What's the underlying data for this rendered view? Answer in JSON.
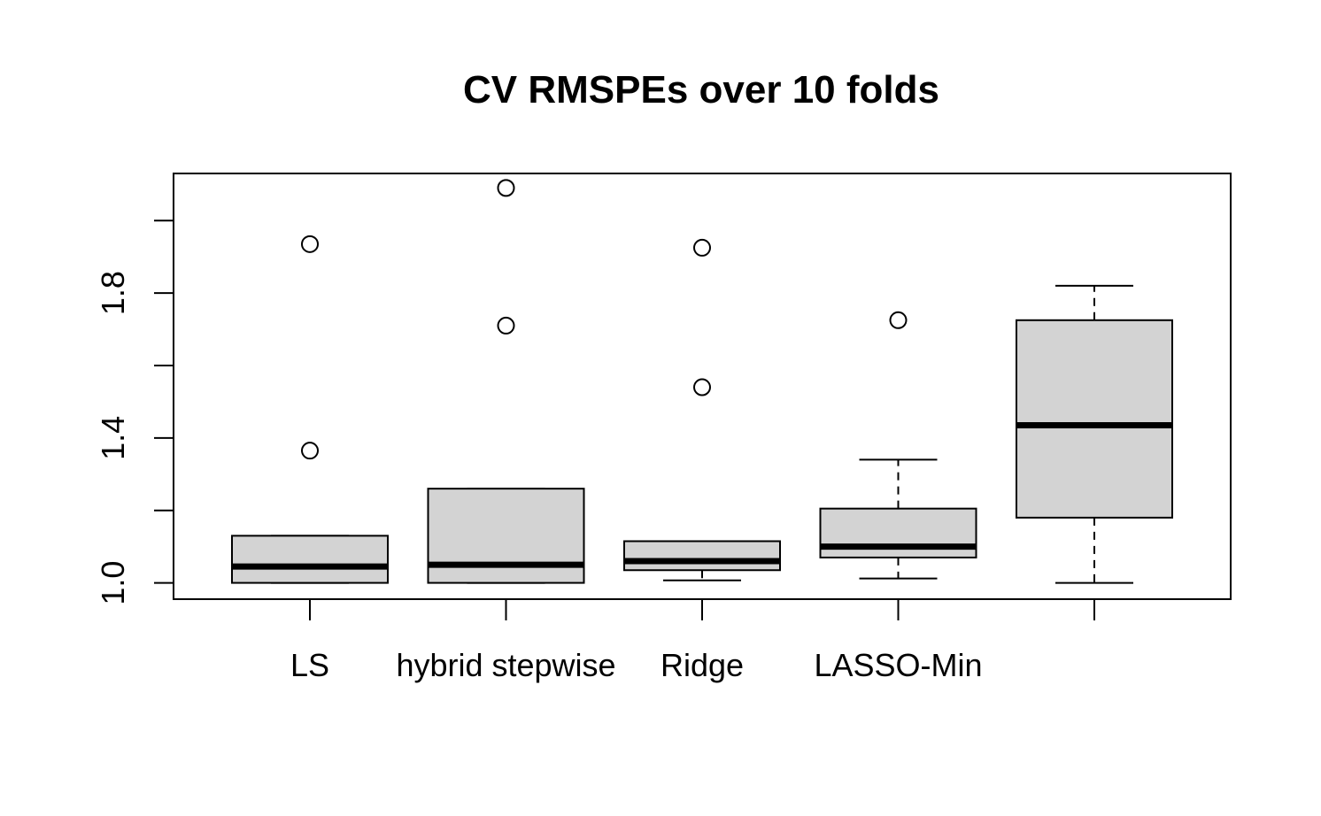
{
  "chart_data": {
    "type": "boxplot",
    "title": "CV RMSPEs over 10 folds",
    "xlabel": "",
    "ylabel": "",
    "ylim": [
      0.955,
      2.13
    ],
    "yticks": [
      1.0,
      1.2,
      1.4,
      1.6,
      1.8,
      2.0
    ],
    "ytick_labels": [
      "1.0",
      "",
      "1.4",
      "",
      "1.8",
      ""
    ],
    "categories": [
      "LS",
      "hybrid stepwise",
      "Ridge",
      "LASSO-Min",
      ""
    ],
    "box_fill": "#d3d3d3",
    "grid": false,
    "legend": "none",
    "boxes": [
      {
        "label": "LS",
        "whisker_low": 1.0,
        "q1": 1.0,
        "median": 1.045,
        "q3": 1.13,
        "whisker_high": 1.13,
        "outliers": [
          1.365,
          1.935
        ]
      },
      {
        "label": "hybrid stepwise",
        "whisker_low": 1.0,
        "q1": 1.0,
        "median": 1.05,
        "q3": 1.26,
        "whisker_high": 1.26,
        "outliers": [
          1.71,
          2.09
        ]
      },
      {
        "label": "Ridge",
        "whisker_low": 1.007,
        "q1": 1.035,
        "median": 1.06,
        "q3": 1.115,
        "whisker_high": 1.115,
        "outliers": [
          1.54,
          1.925
        ]
      },
      {
        "label": "LASSO-Min",
        "whisker_low": 1.012,
        "q1": 1.07,
        "median": 1.1,
        "q3": 1.205,
        "whisker_high": 1.34,
        "outliers": [
          1.725
        ]
      },
      {
        "label": "",
        "whisker_low": 1.0,
        "q1": 1.18,
        "median": 1.435,
        "q3": 1.725,
        "whisker_high": 1.82,
        "outliers": []
      }
    ]
  }
}
